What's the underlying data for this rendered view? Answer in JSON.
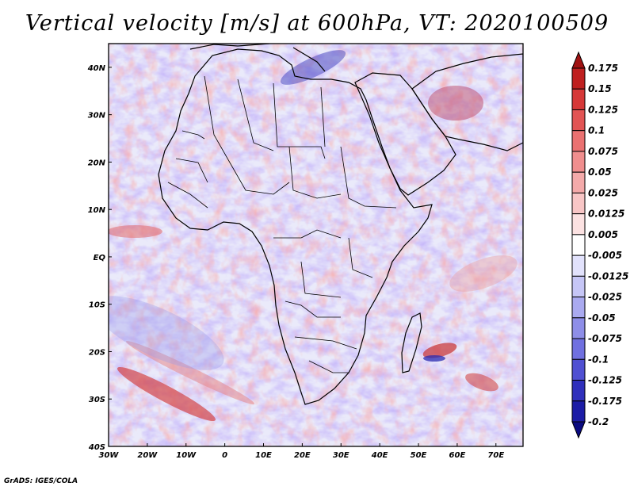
{
  "title": "Vertical velocity [m/s] at 600hPa, VT: 2020100509",
  "credit": "GrADS: IGES/COLA",
  "map": {
    "lon_range": [
      -30,
      77
    ],
    "lat_range": [
      -40,
      45
    ],
    "lon_ticks": [
      {
        "value": -30,
        "label": "30W"
      },
      {
        "value": -20,
        "label": "20W"
      },
      {
        "value": -10,
        "label": "10W"
      },
      {
        "value": 0,
        "label": "0"
      },
      {
        "value": 10,
        "label": "10E"
      },
      {
        "value": 20,
        "label": "20E"
      },
      {
        "value": 30,
        "label": "30E"
      },
      {
        "value": 40,
        "label": "40E"
      },
      {
        "value": 50,
        "label": "50E"
      },
      {
        "value": 60,
        "label": "60E"
      },
      {
        "value": 70,
        "label": "70E"
      }
    ],
    "lat_ticks": [
      {
        "value": 40,
        "label": "40N"
      },
      {
        "value": 30,
        "label": "30N"
      },
      {
        "value": 20,
        "label": "20N"
      },
      {
        "value": 10,
        "label": "10N"
      },
      {
        "value": 0,
        "label": "EQ"
      },
      {
        "value": -10,
        "label": "10S"
      },
      {
        "value": -20,
        "label": "20S"
      },
      {
        "value": -30,
        "label": "30S"
      },
      {
        "value": -40,
        "label": "40S"
      }
    ]
  },
  "colorbar": {
    "levels": [
      "0.175",
      "0.15",
      "0.125",
      "0.1",
      "0.075",
      "0.05",
      "0.025",
      "0.0125",
      "0.005",
      "-0.005",
      "-0.0125",
      "-0.025",
      "-0.05",
      "-0.075",
      "-0.1",
      "-0.125",
      "-0.175",
      "-0.2"
    ],
    "colors": [
      "#a01212",
      "#bf2020",
      "#d63838",
      "#e25454",
      "#ea7171",
      "#f08e8e",
      "#f4aaaa",
      "#f8c6c6",
      "#fce2e2",
      "#ffffff",
      "#e2e2fc",
      "#c6c6f6",
      "#aaaaf0",
      "#8e8ee8",
      "#7070e0",
      "#5050d2",
      "#3030bc",
      "#1c1ca6",
      "#0a0a80"
    ]
  }
}
